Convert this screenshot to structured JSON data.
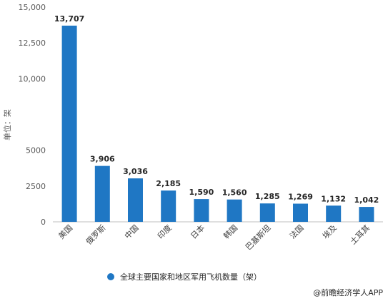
{
  "chart_data": {
    "type": "bar",
    "title": "",
    "xlabel": "",
    "ylabel": "单位：架",
    "categories": [
      "美国",
      "俄罗斯",
      "中国",
      "印度",
      "日本",
      "韩国",
      "巴基斯坦",
      "法国",
      "埃及",
      "土耳其"
    ],
    "series": [
      {
        "name": "全球主要国家和地区军用飞机数量（架）",
        "values": [
          13707,
          3906,
          3036,
          2185,
          1590,
          1560,
          1285,
          1269,
          1132,
          1042
        ]
      }
    ],
    "data_labels": [
      "13,707",
      "3,906",
      "3,036",
      "2,185",
      "1,590",
      "1,560",
      "1,285",
      "1,269",
      "1,132",
      "1,042"
    ],
    "ylim": [
      0,
      15000
    ],
    "yticks": [
      0,
      2500,
      5000,
      10000,
      12500,
      15000
    ],
    "ytick_labels": [
      "0",
      "2500",
      "5000",
      "10,000",
      "12,500",
      "15,000"
    ],
    "grid": false,
    "legend_position": "bottom",
    "bar_color": "#1f77c4",
    "label_color": "#262626"
  },
  "source": "@前瞻经济学人APP"
}
